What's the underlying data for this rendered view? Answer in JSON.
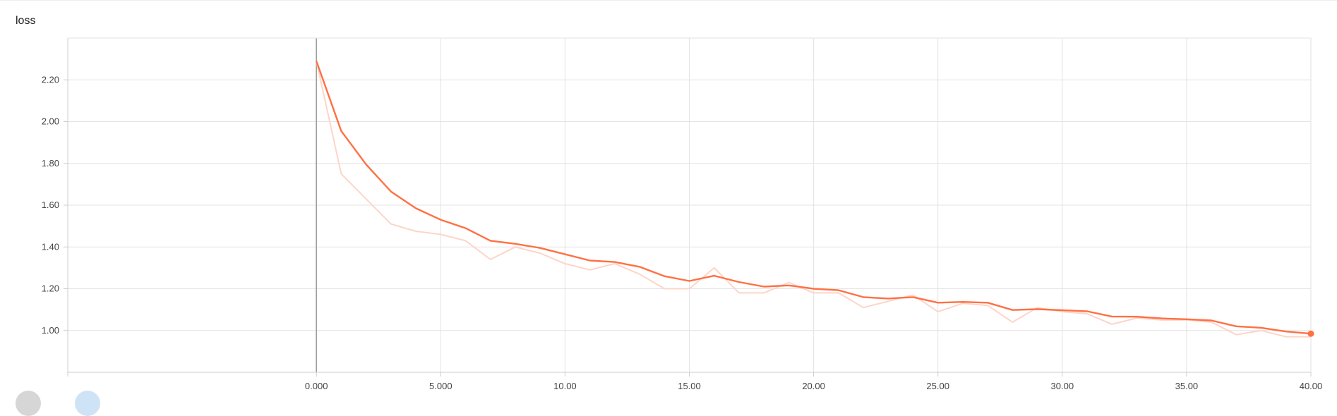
{
  "chart_data": {
    "type": "line",
    "title": "loss",
    "xlabel": "",
    "ylabel": "",
    "xlim": [
      -10,
      40
    ],
    "ylim": [
      0.8,
      2.4
    ],
    "x_ticks": [
      0,
      5,
      10,
      15,
      20,
      25,
      30,
      35,
      40
    ],
    "x_tick_labels": [
      "0.000",
      "5.000",
      "10.00",
      "15.00",
      "20.00",
      "25.00",
      "30.00",
      "35.00",
      "40.00"
    ],
    "y_ticks": [
      1.0,
      1.2,
      1.4,
      1.6,
      1.8,
      2.0,
      2.2
    ],
    "y_tick_labels": [
      "1.00",
      "1.20",
      "1.40",
      "1.60",
      "1.80",
      "2.00",
      "2.20"
    ],
    "grid": true,
    "series": [
      {
        "role": "raw",
        "color": "#fdd5c8",
        "x": [
          0,
          1,
          2,
          3,
          4,
          5,
          6,
          7,
          8,
          9,
          10,
          11,
          12,
          13,
          14,
          15,
          16,
          17,
          18,
          19,
          20,
          21,
          22,
          23,
          24,
          25,
          26,
          27,
          28,
          29,
          30,
          31,
          32,
          33,
          34,
          35,
          36,
          37,
          38,
          39,
          40
        ],
        "values": [
          2.29,
          1.75,
          1.63,
          1.51,
          1.475,
          1.46,
          1.43,
          1.34,
          1.4,
          1.37,
          1.32,
          1.29,
          1.32,
          1.27,
          1.2,
          1.2,
          1.3,
          1.18,
          1.18,
          1.23,
          1.18,
          1.18,
          1.11,
          1.14,
          1.17,
          1.09,
          1.13,
          1.12,
          1.04,
          1.11,
          1.09,
          1.08,
          1.03,
          1.06,
          1.05,
          1.05,
          1.04,
          0.98,
          1.0,
          0.97,
          0.97
        ]
      },
      {
        "role": "smoothed",
        "color": "#ff7043",
        "x": [
          0,
          1,
          2,
          3,
          4,
          5,
          6,
          7,
          8,
          9,
          10,
          11,
          12,
          13,
          14,
          15,
          16,
          17,
          18,
          19,
          20,
          21,
          22,
          23,
          24,
          25,
          26,
          27,
          28,
          29,
          30,
          31,
          32,
          33,
          34,
          35,
          36,
          37,
          38,
          39,
          40
        ],
        "values": [
          2.29,
          1.955,
          1.795,
          1.665,
          1.585,
          1.53,
          1.49,
          1.43,
          1.415,
          1.395,
          1.365,
          1.335,
          1.328,
          1.305,
          1.26,
          1.237,
          1.262,
          1.232,
          1.21,
          1.216,
          1.2,
          1.193,
          1.16,
          1.153,
          1.16,
          1.133,
          1.137,
          1.133,
          1.098,
          1.102,
          1.097,
          1.092,
          1.067,
          1.066,
          1.058,
          1.054,
          1.048,
          1.02,
          1.013,
          0.995,
          0.985
        ]
      }
    ]
  }
}
